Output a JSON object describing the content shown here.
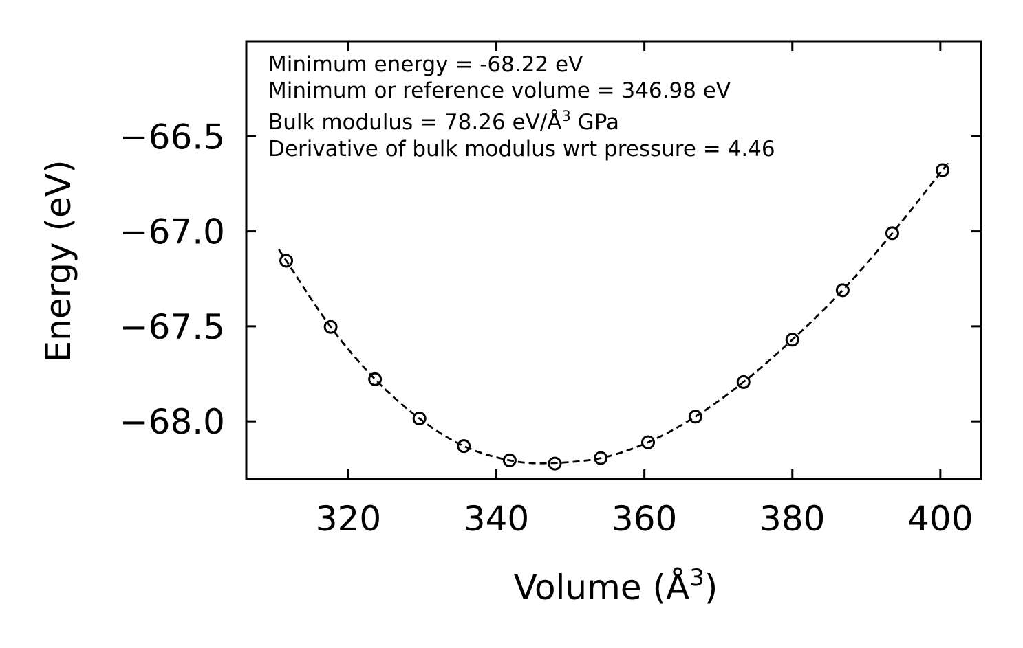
{
  "chart_data": {
    "type": "scatter",
    "title": "",
    "xlabel": "Volume (Å",
    "xlabel_sup": "3",
    "xlabel_close": ")",
    "ylabel": "Energy (eV)",
    "xlim": [
      306.2,
      405.5
    ],
    "ylim": [
      -68.303,
      -66.0
    ],
    "x_ticks": [
      320,
      340,
      360,
      380,
      400
    ],
    "x_tick_labels": [
      "320",
      "340",
      "360",
      "380",
      "400"
    ],
    "y_ticks": [
      -68.0,
      -67.5,
      -67.0,
      -66.5
    ],
    "y_tick_labels": [
      "−68.0",
      "−67.5",
      "−67.0",
      "−66.5"
    ],
    "series": [
      {
        "name": "data",
        "marker": "open-circle",
        "x": [
          311.6,
          317.6,
          323.6,
          329.6,
          335.6,
          341.8,
          347.9,
          354.1,
          360.5,
          366.9,
          373.4,
          380.0,
          386.8,
          393.5,
          400.3
        ],
        "y": [
          -67.155,
          -67.503,
          -67.778,
          -67.985,
          -68.13,
          -68.205,
          -68.222,
          -68.193,
          -68.11,
          -67.975,
          -67.793,
          -67.57,
          -67.31,
          -67.01,
          -66.678
        ]
      },
      {
        "name": "fit",
        "style": "dashed",
        "x": [
          310.6,
          311.6,
          317.6,
          323.6,
          329.6,
          335.6,
          341.8,
          346.98,
          354.1,
          360.5,
          366.9,
          373.4,
          380.0,
          386.8,
          393.5,
          400.3,
          400.8
        ],
        "y": [
          -67.095,
          -67.155,
          -67.503,
          -67.778,
          -67.985,
          -68.13,
          -68.205,
          -68.22,
          -68.193,
          -68.11,
          -67.975,
          -67.793,
          -67.57,
          -67.31,
          -67.01,
          -66.678,
          -66.655
        ]
      }
    ],
    "annotations": [
      {
        "text": "Minimum energy = -68.22 eV"
      },
      {
        "text": "Minimum or reference volume = 346.98 eV"
      },
      {
        "text": "Bulk modulus = 78.26 eV/Å",
        "sup": "3",
        "suffix": " GPa"
      },
      {
        "text": "Derivative of bulk modulus wrt pressure = 4.46"
      }
    ]
  }
}
